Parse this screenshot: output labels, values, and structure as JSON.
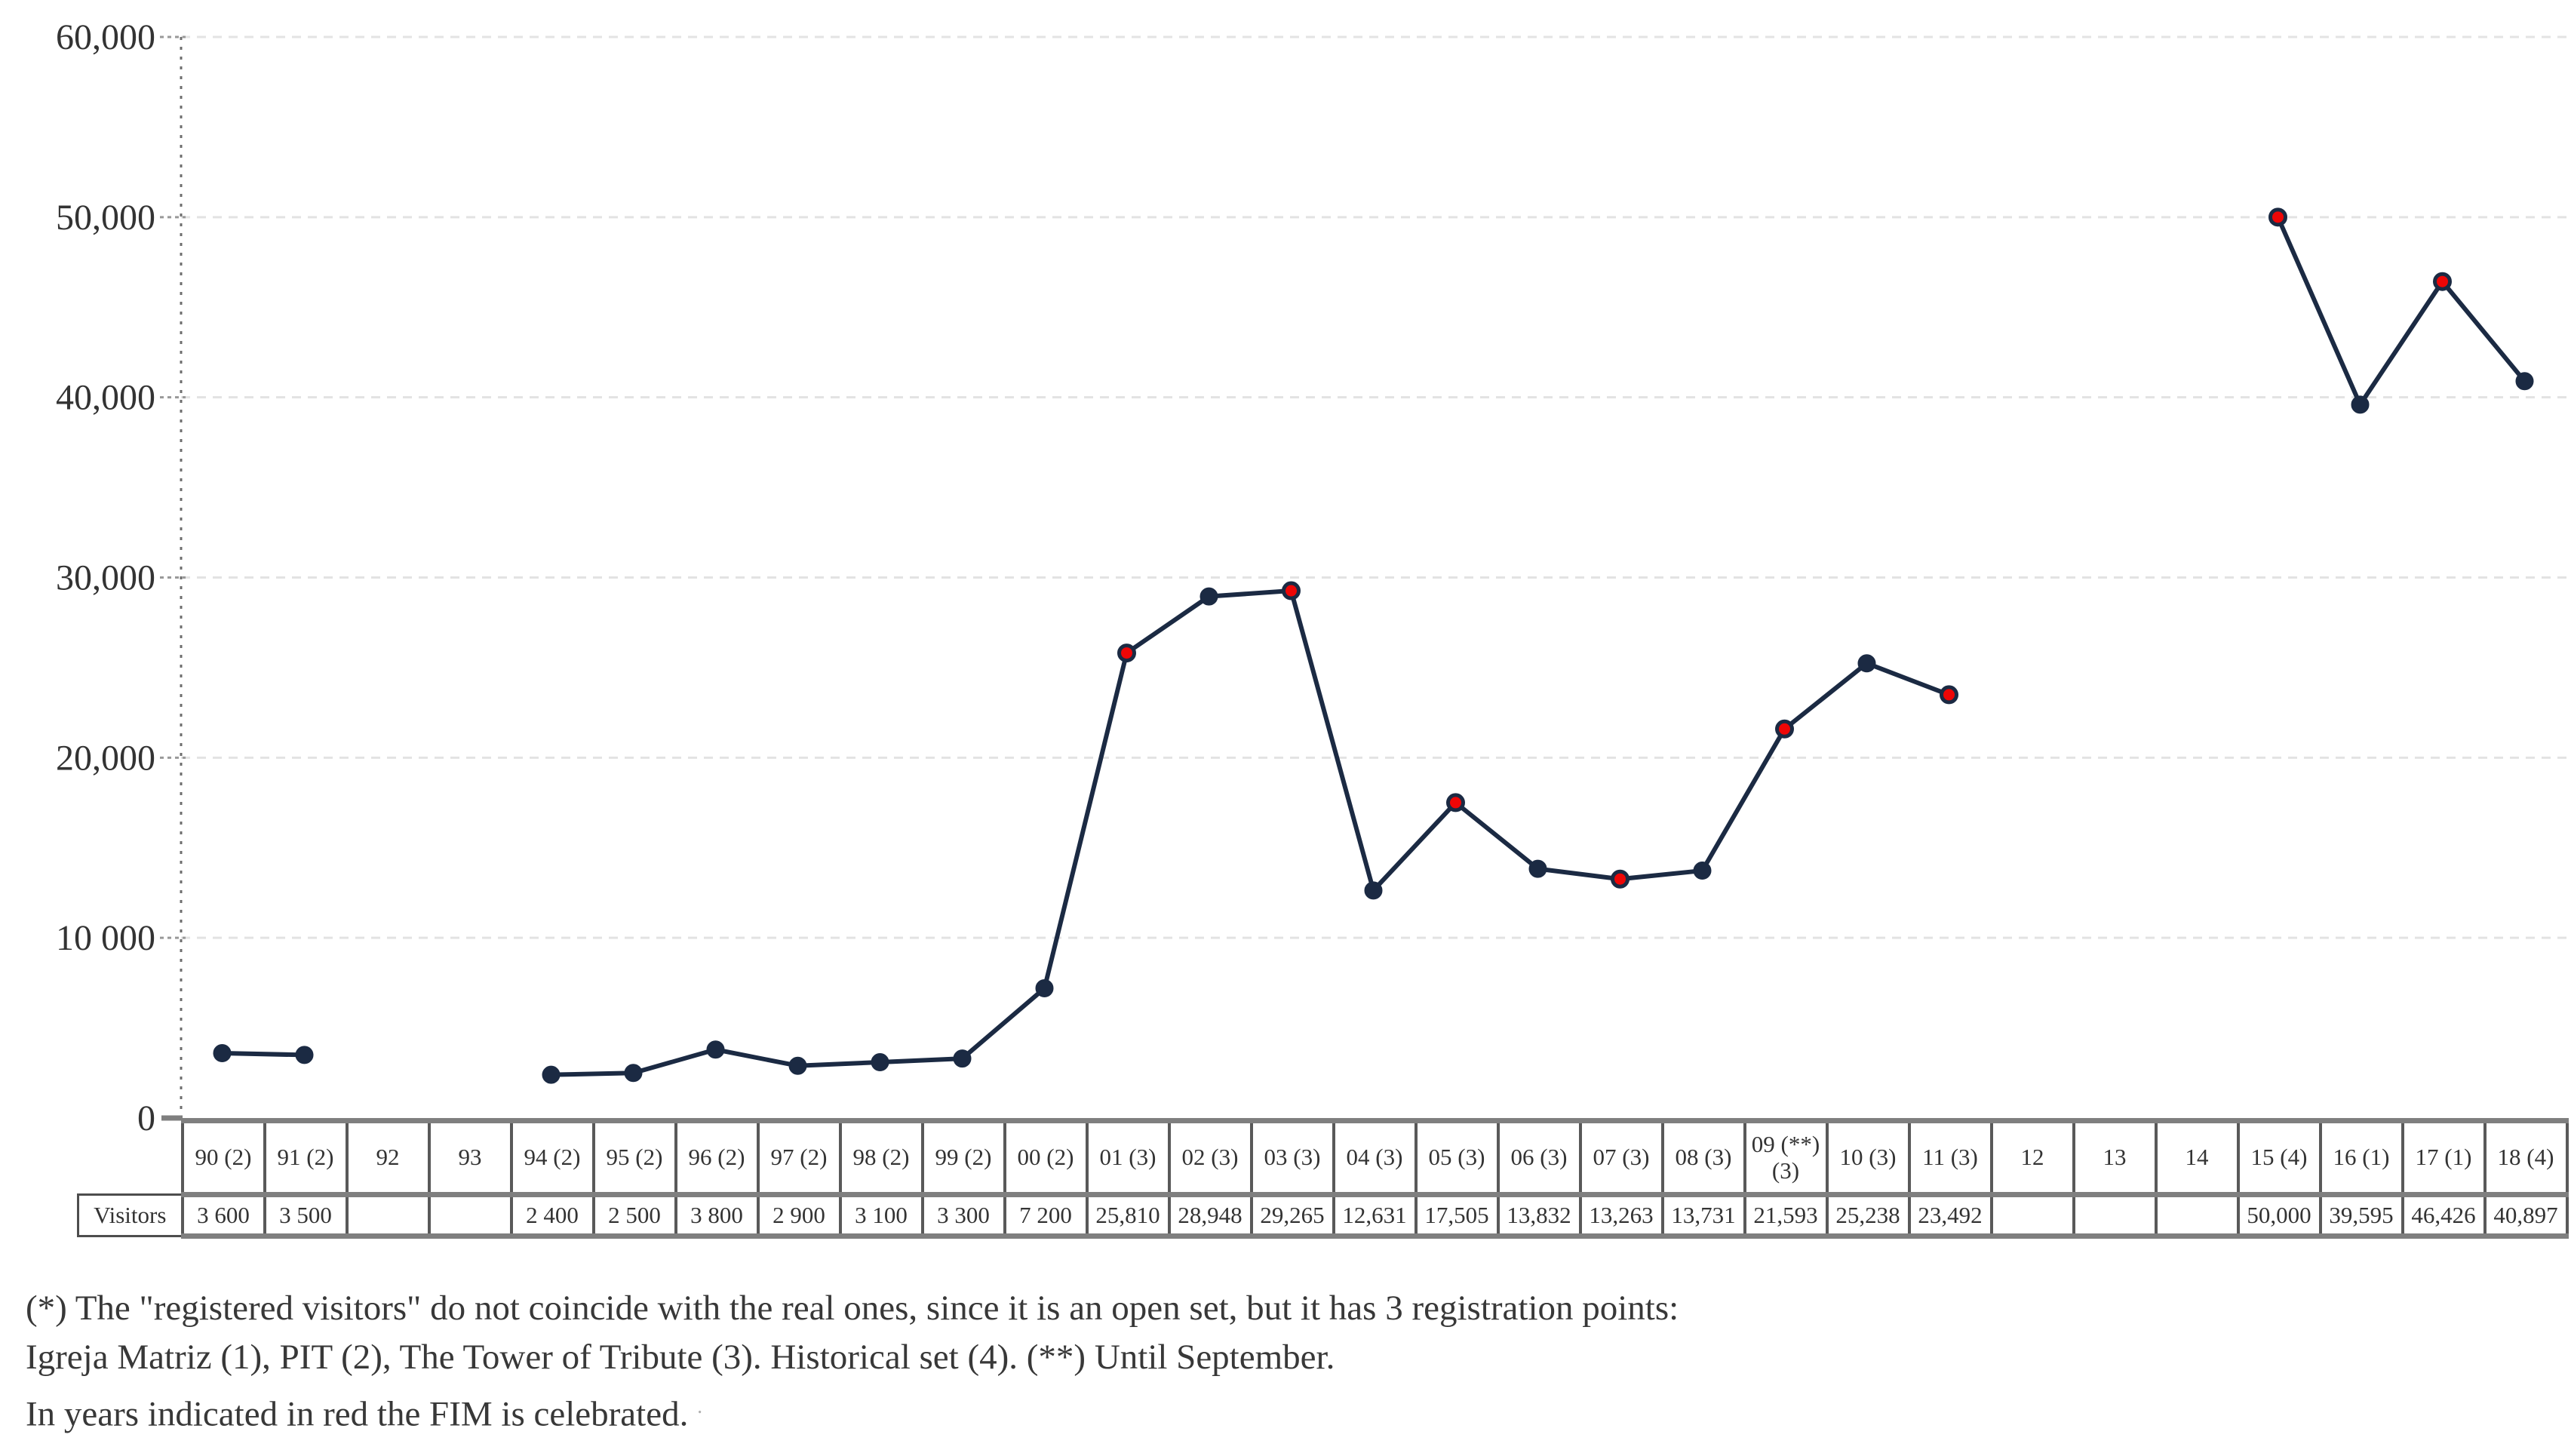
{
  "chart_data": {
    "type": "line",
    "title": "",
    "xlabel": "",
    "ylabel": "",
    "ylim": [
      0,
      60000
    ],
    "ytick_interval": 10000,
    "ytick_labels": [
      "0",
      "10 000",
      "20,000",
      "30,000",
      "40,000",
      "50,000",
      "60,000"
    ],
    "grid": true,
    "legend_position": "none",
    "categories": [
      "90 (2)",
      "91 (2)",
      "92",
      "93",
      "94 (2)",
      "95 (2)",
      "96 (2)",
      "97 (2)",
      "98 (2)",
      "99 (2)",
      "00 (2)",
      "01 (3)",
      "02 (3)",
      "03 (3)",
      "04 (3)",
      "05 (3)",
      "06 (3)",
      "07 (3)",
      "08 (3)",
      "09 (**)(3)",
      "10 (3)",
      "11 (3)",
      "12",
      "13",
      "14",
      "15 (4)",
      "16 (1)",
      "17 (1)",
      "18 (4)"
    ],
    "series": [
      {
        "name": "Visitors",
        "values": [
          3600,
          3500,
          null,
          null,
          2400,
          2500,
          3800,
          2900,
          3100,
          3300,
          7200,
          25810,
          28948,
          29265,
          12631,
          17505,
          13832,
          13263,
          13731,
          21593,
          25238,
          23492,
          null,
          null,
          null,
          50000,
          39595,
          46426,
          40897
        ]
      }
    ],
    "value_labels": [
      "3 600",
      "3 500",
      "",
      "",
      "2 400",
      "2 500",
      "3 800",
      "2 900",
      "3 100",
      "3 300",
      "7 200",
      "25,810",
      "28,948",
      "29,265",
      "12,631",
      "17,505",
      "13,832",
      "13,263",
      "13,731",
      "21,593",
      "25,238",
      "23,492",
      "",
      "",
      "",
      "50,000",
      "39,595",
      "46,426",
      "40,897"
    ],
    "fim_red_marker": [
      false,
      false,
      false,
      false,
      false,
      false,
      false,
      false,
      false,
      false,
      false,
      true,
      false,
      true,
      false,
      true,
      false,
      true,
      false,
      true,
      false,
      true,
      false,
      false,
      false,
      true,
      false,
      true,
      false
    ],
    "line_color": "#1b2a43",
    "marker_color": "#1b2a43",
    "fim_marker_color": "#ee0606",
    "grid_color": "#e3e3e3",
    "axis_color": "#6e6e6e"
  },
  "table": {
    "row_label": "Visitors"
  },
  "footnote": {
    "line1": "(*) The \"registered visitors\" do not coincide with the real ones, since it is an open set, but it has 3 registration points:",
    "line2": "Igreja Matriz (1), PIT (2), The Tower of Tribute (3). Historical set (4). (**) Until September.",
    "line3": "In years indicated in red the FIM is celebrated.",
    "trailing_mark": "."
  }
}
